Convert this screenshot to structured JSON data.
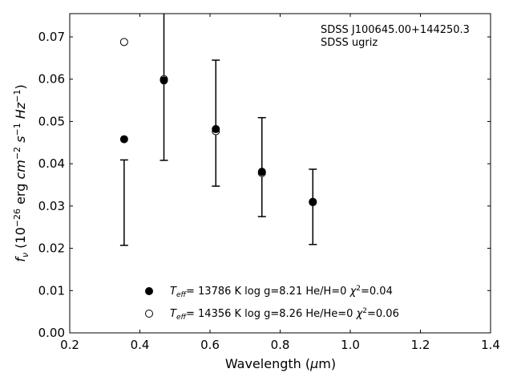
{
  "chart_data": {
    "type": "scatter",
    "xlabel": "Wavelength (μm)",
    "ylabel": "f_ν (10^-26 erg cm^-2 s^-1 Hz^-1)",
    "xlim": [
      0.2,
      1.4
    ],
    "ylim": [
      0.0,
      0.0755
    ],
    "xticks": [
      "0.2",
      "0.4",
      "0.6",
      "0.8",
      "1.0",
      "1.2",
      "1.4"
    ],
    "yticks": [
      "0.00",
      "0.01",
      "0.02",
      "0.03",
      "0.04",
      "0.05",
      "0.06",
      "0.07"
    ],
    "annotations": [
      "SDSS J100645.00+144250.3",
      "SDSS ugriz"
    ],
    "grid": false,
    "legend_position": "bottom-center",
    "observed": {
      "x": [
        0.3551,
        0.4686,
        0.6166,
        0.748,
        0.8932
      ],
      "y": [
        0.0308,
        0.0631,
        0.0496,
        0.0392,
        0.0298
      ],
      "yerr": [
        0.0101,
        0.0223,
        0.0149,
        0.0117,
        0.0089
      ]
    },
    "series": [
      {
        "name": "T_eff= 13786 K  log g=8.21  He/H=0  χ²=0.04",
        "marker": "filled-circle",
        "x": [
          0.3551,
          0.4686,
          0.6166,
          0.748,
          0.8932
        ],
        "y": [
          0.0458,
          0.0597,
          0.0482,
          0.0381,
          0.031
        ]
      },
      {
        "name": "T_eff= 14356 K  log g=8.26  He/He=0  χ²=0.06",
        "marker": "open-circle",
        "x": [
          0.3551,
          0.4686,
          0.6166,
          0.748,
          0.8932
        ],
        "y": [
          0.0688,
          0.06,
          0.0477,
          0.0378,
          0.0309
        ]
      }
    ]
  },
  "legend_text": {
    "filled": {
      "pre": "= 13786 K  log g=8.21  He/H=0  ",
      "chi": "=0.04"
    },
    "open": {
      "pre": "= 14356 K  log g=8.26  He/He=0  ",
      "chi": "=0.06"
    }
  }
}
